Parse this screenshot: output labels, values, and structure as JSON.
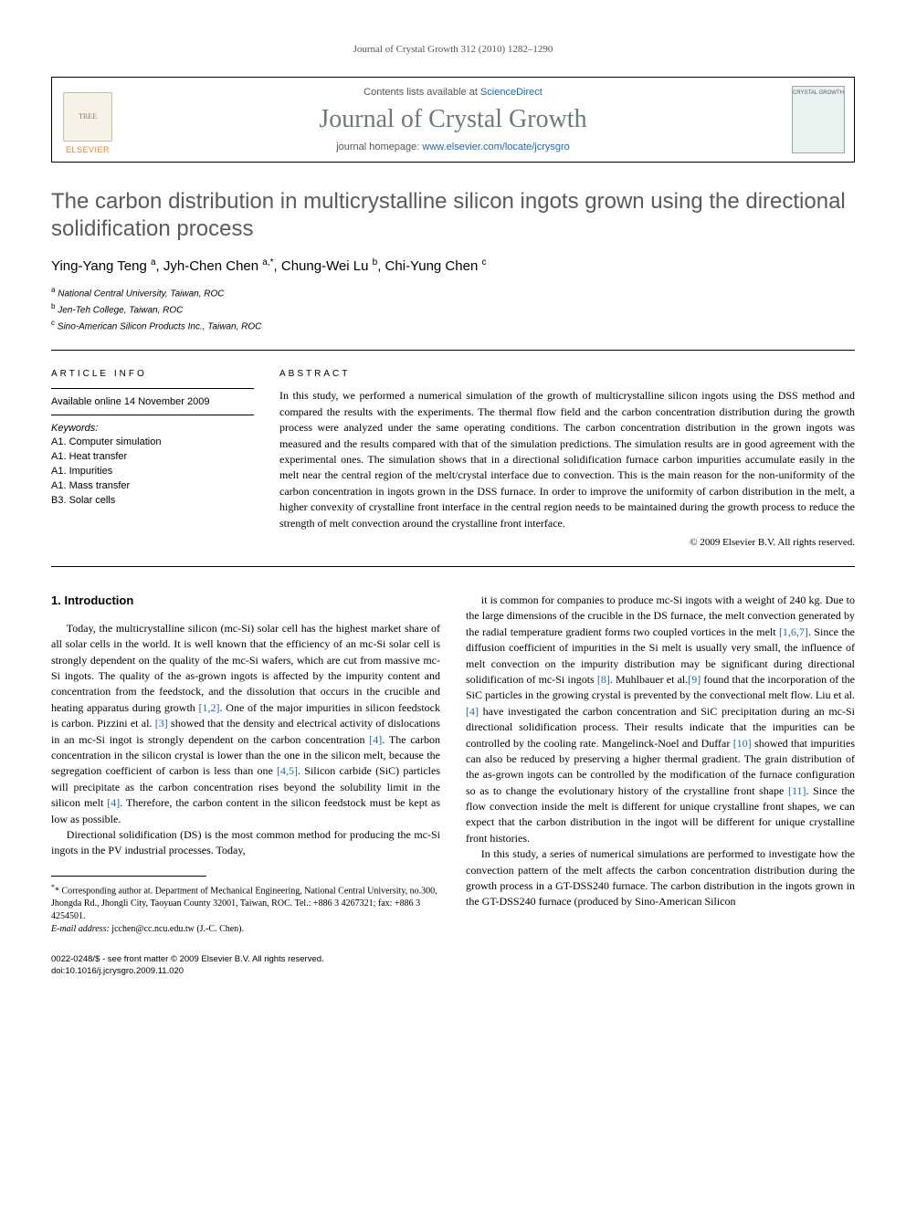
{
  "running_header": "Journal of Crystal Growth 312 (2010) 1282–1290",
  "journal_box": {
    "contents_prefix": "Contents lists available at ",
    "contents_link": "ScienceDirect",
    "journal_name": "Journal of Crystal Growth",
    "homepage_prefix": "journal homepage: ",
    "homepage_link": "www.elsevier.com/locate/jcrysgro",
    "publisher": "ELSEVIER",
    "cover_text": "CRYSTAL GROWTH"
  },
  "title": "The carbon distribution in multicrystalline silicon ingots grown using the directional solidification process",
  "authors_html": "Ying-Yang Teng <span class='sup'>a</span>, Jyh-Chen Chen <span class='sup'>a,</span><span class='sup star'>*</span>, Chung-Wei Lu <span class='sup'>b</span>, Chi-Yung Chen <span class='sup'>c</span>",
  "affiliations": [
    {
      "sup": "a",
      "text": "National Central University, Taiwan, ROC"
    },
    {
      "sup": "b",
      "text": "Jen-Teh College, Taiwan, ROC"
    },
    {
      "sup": "c",
      "text": "Sino-American Silicon Products Inc., Taiwan, ROC"
    }
  ],
  "article_info_heading": "ARTICLE INFO",
  "abstract_heading": "ABSTRACT",
  "available_online": "Available online 14 November 2009",
  "keywords_heading": "Keywords:",
  "keywords": [
    "A1. Computer simulation",
    "A1. Heat transfer",
    "A1. Impurities",
    "A1. Mass transfer",
    "B3. Solar cells"
  ],
  "abstract": "In this study, we performed a numerical simulation of the growth of multicrystalline silicon ingots using the DSS method and compared the results with the experiments. The thermal flow field and the carbon concentration distribution during the growth process were analyzed under the same operating conditions. The carbon concentration distribution in the grown ingots was measured and the results compared with that of the simulation predictions. The simulation results are in good agreement with the experimental ones. The simulation shows that in a directional solidification furnace carbon impurities accumulate easily in the melt near the central region of the melt/crystal interface due to convection. This is the main reason for the non-uniformity of the carbon concentration in ingots grown in the DSS furnace. In order to improve the uniformity of carbon distribution in the melt, a higher convexity of crystalline front interface in the central region needs to be maintained during the growth process to reduce the strength of melt convection around the crystalline front interface.",
  "copyright": "© 2009 Elsevier B.V. All rights reserved.",
  "section1_heading": "1. Introduction",
  "col_left_paras": [
    "Today, the multicrystalline silicon (mc-Si) solar cell has the highest market share of all solar cells in the world. It is well known that the efficiency of an mc-Si solar cell is strongly dependent on the quality of the mc-Si wafers, which are cut from massive mc-Si ingots. The quality of the as-grown ingots is affected by the impurity content and concentration from the feedstock, and the dissolution that occurs in the crucible and heating apparatus during growth <span class='ref'>[1,2]</span>. One of the major impurities in silicon feedstock is carbon. Pizzini et al. <span class='ref'>[3]</span> showed that the density and electrical activity of dislocations in an mc-Si ingot is strongly dependent on the carbon concentration <span class='ref'>[4]</span>. The carbon concentration in the silicon crystal is lower than the one in the silicon melt, because the segregation coefficient of carbon is less than one <span class='ref'>[4,5]</span>. Silicon carbide (SiC) particles will precipitate as the carbon concentration rises beyond the solubility limit in the silicon melt <span class='ref'>[4]</span>. Therefore, the carbon content in the silicon feedstock must be kept as low as possible.",
    "Directional solidification (DS) is the most common method for producing the mc-Si ingots in the PV industrial processes. Today,"
  ],
  "col_right_paras": [
    "it is common for companies to produce mc-Si ingots with a weight of 240 kg. Due to the large dimensions of the crucible in the DS furnace, the melt convection generated by the radial temperature gradient forms two coupled vortices in the melt <span class='ref'>[1,6,7]</span>. Since the diffusion coefficient of impurities in the Si melt is usually very small, the influence of melt convection on the impurity distribution may be significant during directional solidification of mc-Si ingots <span class='ref'>[8]</span>. Muhlbauer et al.<span class='ref'>[9]</span> found that the incorporation of the SiC particles in the growing crystal is prevented by the convectional melt flow. Liu et al. <span class='ref'>[4]</span> have investigated the carbon concentration and SiC precipitation during an mc-Si directional solidification process. Their results indicate that the impurities can be controlled by the cooling rate. Mangelinck-Noel and Duffar <span class='ref'>[10]</span> showed that impurities can also be reduced by preserving a higher thermal gradient. The grain distribution of the as-grown ingots can be controlled by the modification of the furnace configuration so as to change the evolutionary history of the crystalline front shape <span class='ref'>[11]</span>. Since the flow convection inside the melt is different for unique crystalline front shapes, we can expect that the carbon distribution in the ingot will be different for unique crystalline front histories.",
    "In this study, a series of numerical simulations are performed to investigate how the convection pattern of the melt affects the carbon concentration distribution during the growth process in a GT-DSS240 furnace. The carbon distribution in the ingots grown in the GT-DSS240 furnace (produced by Sino-American Silicon"
  ],
  "footnote": {
    "corr_label": "* Corresponding author at.",
    "corr_text": " Department of Mechanical Engineering, National Central University, no.300, Jhongda Rd., Jhongli City, Taoyuan County 32001, Taiwan, ROC. Tel.: +886 3 4267321; fax: +886 3 4254501.",
    "email_label": "E-mail address:",
    "email": " jcchen@cc.ncu.edu.tw (J.-C. Chen)."
  },
  "bottom": {
    "line1": "0022-0248/$ - see front matter © 2009 Elsevier B.V. All rights reserved.",
    "line2": "doi:10.1016/j.jcrysgro.2009.11.020"
  },
  "colors": {
    "link": "#1767c1",
    "elsevier_orange": "#ff7a1a",
    "journal_gray": "#6a7a7a",
    "title_gray": "#5a5a5a"
  }
}
